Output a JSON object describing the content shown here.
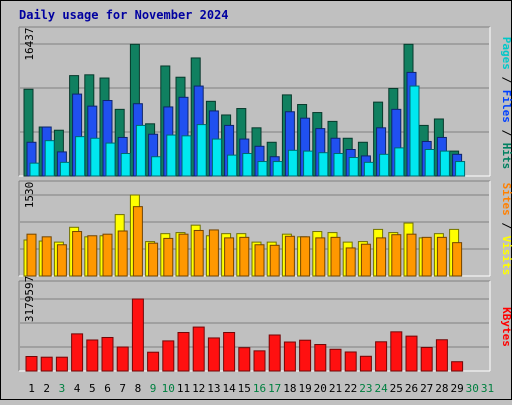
{
  "chart_data": {
    "type": "bar",
    "title": "Daily usage for November 2024",
    "categories": [
      "1",
      "2",
      "3",
      "4",
      "5",
      "6",
      "7",
      "8",
      "9",
      "10",
      "11",
      "12",
      "13",
      "14",
      "15",
      "16",
      "17",
      "18",
      "19",
      "20",
      "21",
      "22",
      "23",
      "24",
      "25",
      "26",
      "27",
      "28",
      "29",
      "30",
      "31"
    ],
    "weekend_days": [
      3,
      9,
      10,
      16,
      17,
      23,
      24,
      30,
      31
    ],
    "panels": [
      {
        "id": "hits-files-pages",
        "axis_max_label": "16437",
        "ymax": 16437,
        "side_labels": [
          {
            "text": "Pages",
            "color": "#00c8c8"
          },
          {
            "text": " / ",
            "color": "#000000"
          },
          {
            "text": "Files",
            "color": "#0040ff"
          },
          {
            "text": " / ",
            "color": "#000000"
          },
          {
            "text": "Hits",
            "color": "#008060"
          }
        ],
        "series": [
          {
            "name": "Hits",
            "color": "#108060",
            "values": [
              10800,
              6100,
              5700,
              12500,
              12600,
              12200,
              8300,
              16400,
              6500,
              13700,
              12300,
              14700,
              9300,
              7600,
              8400,
              6000,
              4200,
              10100,
              8900,
              7900,
              6800,
              4700,
              4200,
              9200,
              10900,
              16400,
              6300,
              7100,
              3100,
              0,
              0
            ]
          },
          {
            "name": "Files",
            "color": "#2050f0",
            "values": [
              4200,
              6100,
              3000,
              10200,
              8700,
              9400,
              4800,
              9000,
              5200,
              8600,
              9800,
              11200,
              8100,
              6300,
              4600,
              3700,
              2400,
              8000,
              7200,
              5900,
              4700,
              3300,
              2500,
              6000,
              8300,
              12900,
              4300,
              4800,
              2700,
              0,
              0
            ]
          },
          {
            "name": "Pages",
            "color": "#00e8f0",
            "values": [
              1600,
              4400,
              1700,
              4900,
              4700,
              4100,
              2800,
              6300,
              2400,
              5100,
              5000,
              6400,
              4600,
              2600,
              2800,
              1800,
              1800,
              3200,
              3100,
              2900,
              2800,
              2300,
              1700,
              2700,
              3500,
              11200,
              3300,
              3100,
              1800,
              0,
              0
            ]
          }
        ]
      },
      {
        "id": "visits-sites",
        "axis_max_label": "1530",
        "ymax": 1530,
        "side_labels": [
          {
            "text": "Sites",
            "color": "#ff8000"
          },
          {
            "text": " / ",
            "color": "#000000"
          },
          {
            "text": "Visits",
            "color": "#ffff00"
          }
        ],
        "series": [
          {
            "name": "Visits",
            "color": "#ffff00",
            "values": [
              680,
              660,
              640,
              920,
              740,
              760,
              1160,
              1530,
              650,
              800,
              820,
              960,
              760,
              800,
              800,
              640,
              640,
              790,
              740,
              840,
              820,
              640,
              650,
              880,
              820,
              1000,
              720,
              800,
              880,
              0,
              0
            ]
          },
          {
            "name": "Sites",
            "color": "#ff9800",
            "values": [
              790,
              740,
              590,
              840,
              760,
              790,
              850,
              1310,
              620,
              710,
              790,
              860,
              870,
              720,
              730,
              590,
              580,
              750,
              740,
              720,
              730,
              530,
              600,
              720,
              780,
              790,
              730,
              730,
              630,
              0,
              0
            ]
          }
        ]
      },
      {
        "id": "kbytes",
        "axis_max_label": "3179597",
        "ymax": 3179597,
        "side_labels": [
          {
            "text": "KBytes",
            "color": "#ff0000"
          }
        ],
        "series": [
          {
            "name": "KBytes",
            "color": "#ff1010",
            "values": [
              640000,
              610000,
              610000,
              1640000,
              1370000,
              1480000,
              1060000,
              3180000,
              830000,
              1330000,
              1700000,
              1940000,
              1460000,
              1700000,
              1030000,
              890000,
              1590000,
              1280000,
              1360000,
              1170000,
              960000,
              840000,
              650000,
              1290000,
              1730000,
              1540000,
              1040000,
              1380000,
              410000,
              0,
              0
            ]
          }
        ]
      }
    ]
  }
}
